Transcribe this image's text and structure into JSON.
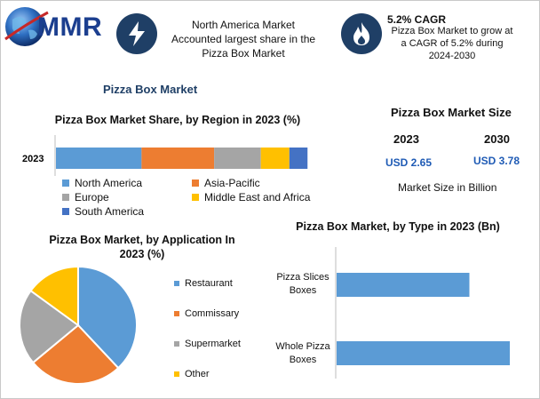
{
  "header": {
    "logo_text": "MMR",
    "card1_text": "North America Market Accounted largest share in the Pizza Box Market",
    "card2_title": "5.2% CAGR",
    "card2_text": "Pizza Box Market to grow at a CAGR of 5.2% during 2024-2030",
    "icon1": "lightning-bolt-icon",
    "icon2": "flame-icon"
  },
  "main_title": "Pizza Box Market",
  "market_size": {
    "title": "Pizza Box Market Size",
    "years": [
      "2023",
      "2030"
    ],
    "values": [
      "USD 2.65",
      "USD 3.78"
    ],
    "note": "Market Size in Billion"
  },
  "colors": {
    "north_america": "#5b9bd5",
    "asia_pacific": "#ed7d31",
    "europe": "#a5a5a5",
    "mea": "#ffc000",
    "south_america": "#4472c4",
    "bar_blue": "#5b9bd5"
  },
  "chart_data": [
    {
      "type": "bar",
      "orientation": "horizontal-stacked",
      "title": "Pizza Box Market Share, by Region in 2023 (%)",
      "categories": [
        "2023"
      ],
      "series": [
        {
          "name": "North America",
          "values": [
            33
          ]
        },
        {
          "name": "Asia-Pacific",
          "values": [
            28
          ]
        },
        {
          "name": "Europe",
          "values": [
            18
          ]
        },
        {
          "name": "Middle East and Africa",
          "values": [
            11
          ]
        },
        {
          "name": "South America",
          "values": [
            7
          ]
        }
      ],
      "xlim": [
        0,
        100
      ],
      "legend": "bottom"
    },
    {
      "type": "pie",
      "title": "Pizza Box Market, by Application In 2023 (%)",
      "labels": [
        "Restaurant",
        "Commissary",
        "Supermarket",
        "Other"
      ],
      "values": [
        38,
        26,
        21,
        15
      ],
      "legend": "right"
    },
    {
      "type": "bar",
      "orientation": "horizontal",
      "title": "Pizza Box Market, by Type in 2023 (Bn)",
      "categories": [
        "Pizza Slices Boxes",
        "Whole Pizza Boxes"
      ],
      "values": [
        1.15,
        1.5
      ],
      "xlim": [
        0,
        1.6
      ]
    }
  ]
}
